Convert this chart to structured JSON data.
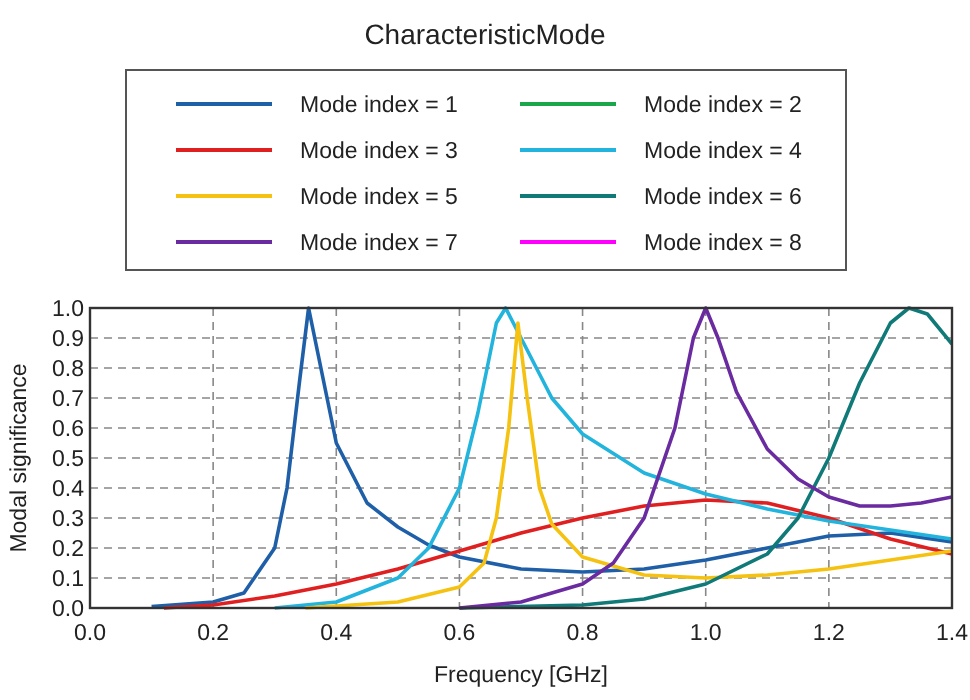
{
  "chart_data": {
    "type": "line",
    "title": "CharacteristicMode",
    "xlabel": "Frequency [GHz]",
    "ylabel": "Modal significance",
    "xlim": [
      0,
      1.4
    ],
    "ylim": [
      0,
      1
    ],
    "xticks": [
      {
        "value": 0,
        "label": "0.0"
      },
      0.2,
      0.4,
      0.6,
      0.8,
      {
        "value": 1,
        "label": "1.0"
      },
      1.2,
      1.4
    ],
    "yticks": [
      {
        "value": 0,
        "label": "0.0"
      },
      0.1,
      0.2,
      0.3,
      0.4,
      0.5,
      0.6,
      0.7,
      0.8,
      0.9,
      {
        "value": 1,
        "label": "1.0"
      }
    ],
    "grid": true,
    "legend": "top",
    "line_style": "solid",
    "marker": "none",
    "series": [
      {
        "name": "Mode index = 1",
        "color": "#1f5fa8",
        "x": [
          0.1,
          0.2,
          0.25,
          0.3,
          0.32,
          0.34,
          0.355,
          0.37,
          0.4,
          0.45,
          0.5,
          0.55,
          0.6,
          0.7,
          0.8,
          0.9,
          1.0,
          1.1,
          1.2,
          1.3,
          1.4
        ],
        "values": [
          0.005,
          0.02,
          0.05,
          0.2,
          0.4,
          0.75,
          1.0,
          0.85,
          0.55,
          0.35,
          0.27,
          0.21,
          0.17,
          0.13,
          0.12,
          0.13,
          0.16,
          0.2,
          0.24,
          0.25,
          0.22
        ]
      },
      {
        "name": "Mode index = 2",
        "color": "#1aa64a",
        "values": [
          null,
          null
        ]
      },
      {
        "name": "Mode index = 3",
        "color": "#e02020",
        "x": [
          0.12,
          0.2,
          0.3,
          0.4,
          0.5,
          0.6,
          0.7,
          0.8,
          0.9,
          1.0,
          1.1,
          1.2,
          1.3,
          1.4
        ],
        "values": [
          0,
          0.01,
          0.04,
          0.08,
          0.13,
          0.19,
          0.25,
          0.3,
          0.34,
          0.36,
          0.35,
          0.3,
          0.23,
          0.18
        ]
      },
      {
        "name": "Mode index = 4",
        "color": "#22b4dc",
        "x": [
          0.3,
          0.4,
          0.5,
          0.55,
          0.6,
          0.63,
          0.66,
          0.675,
          0.7,
          0.75,
          0.8,
          0.9,
          1.0,
          1.1,
          1.2,
          1.3,
          1.4
        ],
        "values": [
          0,
          0.02,
          0.1,
          0.2,
          0.4,
          0.65,
          0.95,
          1.0,
          0.9,
          0.7,
          0.58,
          0.45,
          0.38,
          0.33,
          0.29,
          0.26,
          0.23
        ]
      },
      {
        "name": "Mode index = 5",
        "color": "#f5c211",
        "x": [
          0.35,
          0.5,
          0.6,
          0.64,
          0.66,
          0.68,
          0.695,
          0.71,
          0.73,
          0.75,
          0.8,
          0.9,
          1.0,
          1.1,
          1.2,
          1.3,
          1.4
        ],
        "values": [
          0,
          0.02,
          0.07,
          0.15,
          0.3,
          0.6,
          0.95,
          0.7,
          0.4,
          0.28,
          0.17,
          0.11,
          0.1,
          0.11,
          0.13,
          0.16,
          0.19
        ]
      },
      {
        "name": "Mode index = 6",
        "color": "#0f7a78",
        "x": [
          0.6,
          0.8,
          0.9,
          1.0,
          1.1,
          1.15,
          1.2,
          1.25,
          1.3,
          1.33,
          1.36,
          1.4
        ],
        "values": [
          0,
          0.01,
          0.03,
          0.08,
          0.18,
          0.3,
          0.5,
          0.75,
          0.95,
          1.0,
          0.98,
          0.88
        ]
      },
      {
        "name": "Mode index = 7",
        "color": "#6a2aa0",
        "x": [
          0.6,
          0.7,
          0.8,
          0.85,
          0.9,
          0.95,
          0.98,
          1.0,
          1.02,
          1.05,
          1.1,
          1.15,
          1.2,
          1.25,
          1.3,
          1.35,
          1.4
        ],
        "values": [
          0,
          0.02,
          0.08,
          0.15,
          0.3,
          0.6,
          0.9,
          1.0,
          0.9,
          0.72,
          0.53,
          0.43,
          0.37,
          0.34,
          0.34,
          0.35,
          0.37
        ]
      },
      {
        "name": "Mode index = 8",
        "color": "#ff00ff",
        "values": [
          null,
          null
        ]
      }
    ]
  }
}
